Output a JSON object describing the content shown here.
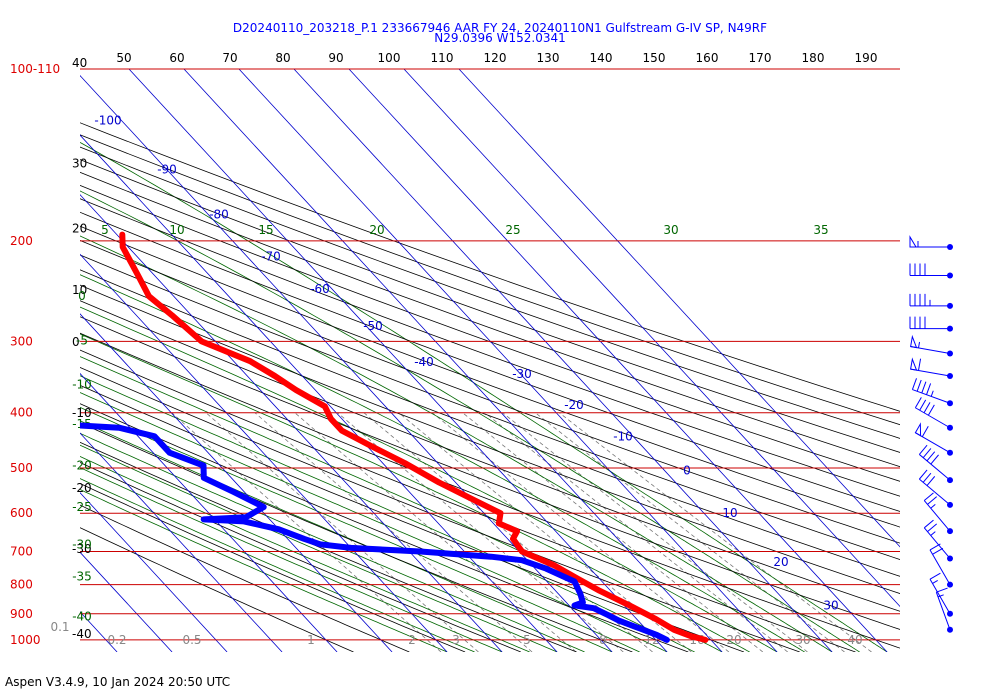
{
  "header": {
    "title_line1": "D20240110_203218_P.1 233667946 AAR FY 24, 20240110N1 Gulfstream G-IV SP, N49RF",
    "title_line2": "N29.0396 W152.0341"
  },
  "footer": {
    "text": "Aspen V3.4.9, 10 Jan 2024  20:50 UTC"
  },
  "colors": {
    "temperature": "#ff0000",
    "dewpoint": "#0000ff",
    "isobar": "#cc0000",
    "isotherm": "#0000cc",
    "dry_adiabat": "#000000",
    "moist_adiabat": "#006600",
    "mixing_ratio": "#777777"
  },
  "chart_data": {
    "type": "skew-t log-p sounding",
    "pressure_labels": [
      {
        "p": 100,
        "label": "100-110"
      },
      {
        "p": 200,
        "label": "200"
      },
      {
        "p": 300,
        "label": "300"
      },
      {
        "p": 400,
        "label": "400"
      },
      {
        "p": 500,
        "label": "500"
      },
      {
        "p": 600,
        "label": "600"
      },
      {
        "p": 700,
        "label": "700"
      },
      {
        "p": 800,
        "label": "800"
      },
      {
        "p": 900,
        "label": "900"
      },
      {
        "p": 1000,
        "label": "1000"
      }
    ],
    "top_scale_labels": [
      "50",
      "60",
      "70",
      "80",
      "90",
      "100",
      "110",
      "120",
      "130",
      "140",
      "150",
      "160",
      "170",
      "180",
      "190"
    ],
    "height_labels": [
      {
        "p": 100,
        "label": "40"
      },
      {
        "p": 150,
        "label": "30"
      },
      {
        "p": 195,
        "label": "20"
      },
      {
        "p": 250,
        "label": "10"
      },
      {
        "p": 308,
        "label": "0"
      },
      {
        "p": 410,
        "label": "-10"
      },
      {
        "p": 555,
        "label": "-20"
      },
      {
        "p": 710,
        "label": "-30"
      },
      {
        "p": 1000,
        "label": "-40"
      }
    ],
    "isotherm_labels": [
      {
        "t": -100,
        "label": "-100"
      },
      {
        "t": -90,
        "label": "-90"
      },
      {
        "t": -80,
        "label": "-80"
      },
      {
        "t": -70,
        "label": "-70"
      },
      {
        "t": -60,
        "label": "-60"
      },
      {
        "t": -50,
        "label": "-50"
      },
      {
        "t": -40,
        "label": "-40"
      },
      {
        "t": -30,
        "label": "-30"
      },
      {
        "t": -20,
        "label": "-20"
      },
      {
        "t": -10,
        "label": "-10"
      },
      {
        "t": 0,
        "label": "0"
      },
      {
        "t": 10,
        "label": "10"
      },
      {
        "t": 20,
        "label": "20"
      },
      {
        "t": 30,
        "label": "30"
      }
    ],
    "moist_top_labels": [
      "5",
      "10",
      "15",
      "20",
      "25",
      "30",
      "35"
    ],
    "moist_left_labels": [
      "0",
      "-5",
      "-10",
      "-15",
      "-20",
      "-25",
      "-30",
      "-35",
      "-40"
    ],
    "mixing_ratio_labels": [
      "0.1",
      "0.2",
      "0.5",
      "1",
      "2",
      "3",
      "5",
      "8",
      "12",
      "16",
      "20",
      "30",
      "40"
    ],
    "temperature_profile": [
      {
        "p": 195,
        "t": -29
      },
      {
        "p": 205,
        "t": -31
      },
      {
        "p": 230,
        "t": -33
      },
      {
        "p": 250,
        "t": -34.5
      },
      {
        "p": 270,
        "t": -33.5
      },
      {
        "p": 300,
        "t": -32.5
      },
      {
        "p": 325,
        "t": -27
      },
      {
        "p": 345,
        "t": -25
      },
      {
        "p": 365,
        "t": -23.5
      },
      {
        "p": 390,
        "t": -21
      },
      {
        "p": 410,
        "t": -22
      },
      {
        "p": 430,
        "t": -22
      },
      {
        "p": 460,
        "t": -19
      },
      {
        "p": 490,
        "t": -16
      },
      {
        "p": 530,
        "t": -13
      },
      {
        "p": 570,
        "t": -9.5
      },
      {
        "p": 600,
        "t": -7
      },
      {
        "p": 625,
        "t": -9
      },
      {
        "p": 645,
        "t": -7
      },
      {
        "p": 665,
        "t": -9
      },
      {
        "p": 700,
        "t": -9.5
      },
      {
        "p": 740,
        "t": -6
      },
      {
        "p": 780,
        "t": -4
      },
      {
        "p": 820,
        "t": -2
      },
      {
        "p": 870,
        "t": 1
      },
      {
        "p": 920,
        "t": 3.5
      },
      {
        "p": 960,
        "t": 5
      },
      {
        "p": 985,
        "t": 7
      },
      {
        "p": 1000,
        "t": 9
      }
    ],
    "dewpoint_profile": [
      {
        "p": 232,
        "t": -73
      },
      {
        "p": 240,
        "t": -72.5
      },
      {
        "p": 250,
        "t": -72
      },
      {
        "p": 262,
        "t": -74
      },
      {
        "p": 275,
        "t": -75
      },
      {
        "p": 290,
        "t": -74
      },
      {
        "p": 310,
        "t": -77
      },
      {
        "p": 330,
        "t": -80
      },
      {
        "p": 355,
        "t": -80
      },
      {
        "p": 380,
        "t": -81
      },
      {
        "p": 400,
        "t": -82
      },
      {
        "p": 420,
        "t": -71
      },
      {
        "p": 425,
        "t": -62
      },
      {
        "p": 440,
        "t": -57
      },
      {
        "p": 470,
        "t": -57
      },
      {
        "p": 495,
        "t": -53
      },
      {
        "p": 520,
        "t": -55
      },
      {
        "p": 550,
        "t": -52
      },
      {
        "p": 585,
        "t": -49
      },
      {
        "p": 610,
        "t": -54
      },
      {
        "p": 615,
        "t": -62
      },
      {
        "p": 620,
        "t": -55
      },
      {
        "p": 640,
        "t": -50
      },
      {
        "p": 665,
        "t": -47
      },
      {
        "p": 680,
        "t": -45
      },
      {
        "p": 690,
        "t": -40
      },
      {
        "p": 700,
        "t": -28
      },
      {
        "p": 710,
        "t": -20
      },
      {
        "p": 715,
        "t": -16
      },
      {
        "p": 725,
        "t": -11
      },
      {
        "p": 750,
        "t": -8
      },
      {
        "p": 790,
        "t": -5
      },
      {
        "p": 830,
        "t": -6
      },
      {
        "p": 860,
        "t": -7
      },
      {
        "p": 870,
        "t": -9
      },
      {
        "p": 880,
        "t": -6
      },
      {
        "p": 905,
        "t": -4.5
      },
      {
        "p": 925,
        "t": -3.5
      },
      {
        "p": 955,
        "t": -1
      },
      {
        "p": 980,
        "t": 1
      },
      {
        "p": 1000,
        "t": 2
      }
    ],
    "wind_barbs": [
      {
        "p": 205,
        "dir": 270,
        "speed": 55
      },
      {
        "p": 230,
        "dir": 270,
        "speed": 40
      },
      {
        "p": 260,
        "dir": 270,
        "speed": 45
      },
      {
        "p": 285,
        "dir": 270,
        "speed": 40
      },
      {
        "p": 315,
        "dir": 280,
        "speed": 55
      },
      {
        "p": 345,
        "dir": 280,
        "speed": 60
      },
      {
        "p": 385,
        "dir": 290,
        "speed": 45
      },
      {
        "p": 425,
        "dir": 300,
        "speed": 40
      },
      {
        "p": 470,
        "dir": 300,
        "speed": 60
      },
      {
        "p": 525,
        "dir": 310,
        "speed": 40
      },
      {
        "p": 580,
        "dir": 310,
        "speed": 30
      },
      {
        "p": 645,
        "dir": 320,
        "speed": 25
      },
      {
        "p": 720,
        "dir": 320,
        "speed": 25
      },
      {
        "p": 800,
        "dir": 330,
        "speed": 20
      },
      {
        "p": 900,
        "dir": 330,
        "speed": 15
      },
      {
        "p": 960,
        "dir": 340,
        "speed": 15
      }
    ]
  }
}
